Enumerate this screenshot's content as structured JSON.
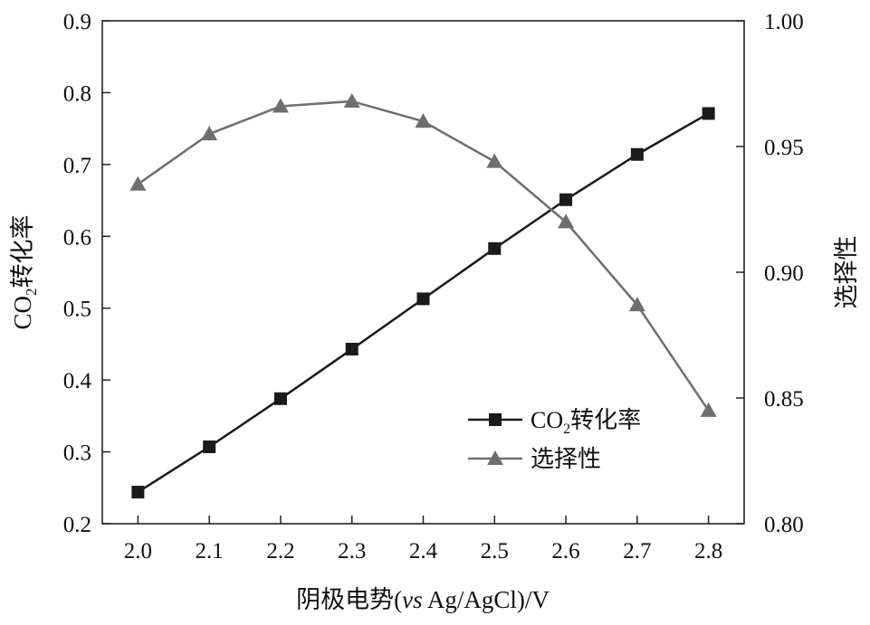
{
  "chart_data": {
    "type": "line",
    "x": [
      "2.0",
      "2.1",
      "2.2",
      "2.3",
      "2.4",
      "2.5",
      "2.6",
      "2.7",
      "2.8"
    ],
    "xlim": [
      1.95,
      2.85
    ],
    "xlabel": {
      "prefix": "阴极电势(",
      "italic": "vs",
      "suffix": " Ag/AgCl)/V"
    },
    "y_left": {
      "label_main": "CO",
      "label_sub": "2",
      "label_rest": "转化率",
      "ylim": [
        0.2,
        0.9
      ],
      "ticks": [
        "0.2",
        "0.3",
        "0.4",
        "0.5",
        "0.6",
        "0.7",
        "0.8",
        "0.9"
      ]
    },
    "y_right": {
      "label": "选择性",
      "ylim": [
        0.8,
        1.0
      ],
      "ticks": [
        "0.80",
        "0.85",
        "0.90",
        "0.95",
        "1.00"
      ]
    },
    "series": [
      {
        "name_main": "CO",
        "name_sub": "2",
        "name_rest": "转化率",
        "axis": "left",
        "marker": "square",
        "color": "#1a1a1a",
        "values": [
          0.244,
          0.307,
          0.374,
          0.443,
          0.513,
          0.583,
          0.651,
          0.714,
          0.771
        ]
      },
      {
        "name": "选择性",
        "axis": "right",
        "marker": "triangle",
        "color": "#6e6e6e",
        "values": [
          0.935,
          0.955,
          0.966,
          0.968,
          0.96,
          0.944,
          0.92,
          0.887,
          0.845
        ]
      }
    ],
    "legend_position": "lower-right",
    "grid": false
  }
}
